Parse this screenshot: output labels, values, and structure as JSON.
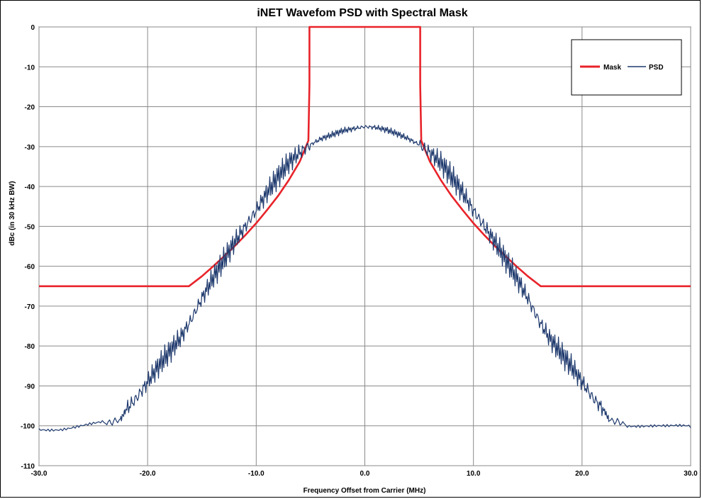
{
  "chart_data": {
    "type": "line",
    "title": "iNET Wavefom PSD with Spectral Mask",
    "xlabel": "Frequency  Offset from Carrier (MHz)",
    "ylabel": "dBc (in 30 kHz BW)",
    "xlim": [
      -30,
      30
    ],
    "ylim": [
      -110,
      0
    ],
    "x_ticks": [
      -30,
      -20,
      -10,
      0,
      10,
      20,
      30
    ],
    "x_tick_labels": [
      "-30.0",
      "-20.0",
      "-10.0",
      "0.0",
      "10.0",
      "20.0",
      "30.0"
    ],
    "y_ticks": [
      0,
      -10,
      -20,
      -30,
      -40,
      -50,
      -60,
      -70,
      -80,
      -90,
      -100,
      -110
    ],
    "y_tick_labels": [
      "0",
      "-10",
      "-20",
      "-30",
      "-40",
      "-50",
      "-60",
      "-70",
      "-80",
      "-90",
      "-100",
      "-110"
    ],
    "grid": true,
    "legend_position": "top-right",
    "series": [
      {
        "name": "Mask",
        "color": "#e8232a",
        "x": [
          -30,
          -16.2,
          -15,
          -14,
          -13,
          -12,
          -11,
          -10,
          -9,
          -8,
          -7,
          -6,
          -5.2,
          -5.1,
          -5.1,
          5.1,
          5.1,
          5.2,
          6,
          7,
          8,
          9,
          10,
          11,
          12,
          13,
          14,
          15,
          16.2,
          30
        ],
        "y": [
          -65,
          -65,
          -62.5,
          -60.1,
          -57.6,
          -55,
          -52.2,
          -49.2,
          -45.9,
          -42.4,
          -38.4,
          -33.8,
          -28.5,
          -14.5,
          0,
          0,
          -14.5,
          -28.5,
          -33.8,
          -38.4,
          -42.4,
          -45.9,
          -49.2,
          -52.2,
          -55,
          -57.6,
          -60.1,
          -62.5,
          -65,
          -65
        ]
      },
      {
        "name": "PSD",
        "color": "#1f3a6e",
        "x": [
          -30,
          -28,
          -26,
          -24,
          -22.5,
          -22,
          -21,
          -20,
          -19,
          -18,
          -17,
          -16,
          -15,
          -14,
          -13,
          -12,
          -11,
          -10,
          -9,
          -8,
          -7,
          -6,
          -5,
          -4,
          -3,
          -2,
          -1,
          0,
          1,
          2,
          3,
          4,
          5,
          6,
          7,
          8,
          9,
          10,
          11,
          12,
          13,
          14,
          15,
          16,
          17,
          18,
          19,
          20,
          21,
          22,
          22.5,
          24,
          26,
          28,
          30
        ],
        "y": [
          -100.5,
          -100.5,
          -100,
          -99.5,
          -98.5,
          -96,
          -93,
          -89,
          -85,
          -81.5,
          -78,
          -73.5,
          -68,
          -63,
          -58.5,
          -54,
          -50,
          -46,
          -41.5,
          -37.5,
          -34,
          -31.5,
          -29.5,
          -28,
          -27,
          -26,
          -25.5,
          -25,
          -25.2,
          -25.8,
          -26.8,
          -28,
          -29.5,
          -31.5,
          -34,
          -37.5,
          -41.5,
          -46,
          -50,
          -54,
          -58.5,
          -63,
          -68,
          -73.5,
          -78,
          -81.5,
          -85,
          -89,
          -93,
          -96,
          -98.5,
          -99.5,
          -100,
          -100.5,
          -100.5
        ]
      }
    ]
  }
}
